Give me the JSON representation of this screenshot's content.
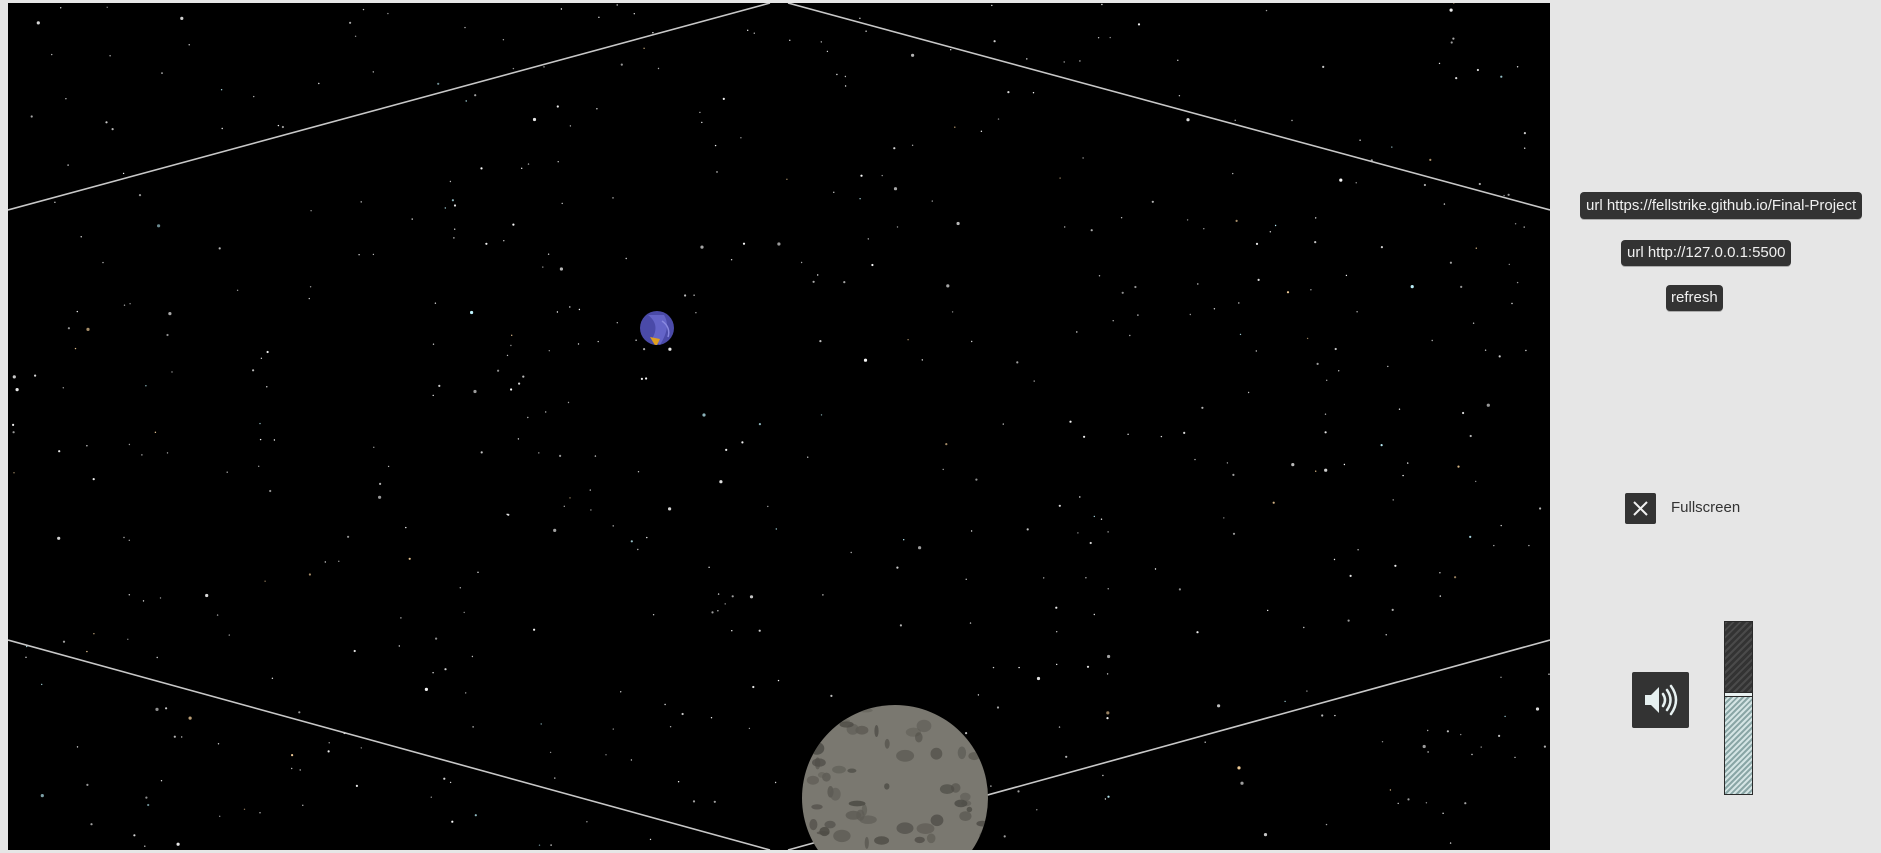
{
  "toolbar": {
    "url_prod_label": "url https://fellstrike.github.io/Final-Project",
    "url_local_label": "url http://127.0.0.1:5500",
    "refresh_label": "refresh"
  },
  "fullscreen": {
    "label": "Fullscreen",
    "checked": true,
    "icon": "close-icon"
  },
  "audio": {
    "speaker_icon": "speaker-icon",
    "volume_fraction": 0.58
  },
  "scene": {
    "background_color": "#000000",
    "frame_line_color": "#c8c8c8",
    "planet_colors": [
      "#4a4aa8",
      "#e0a020"
    ],
    "moon_color": "#7a7870"
  },
  "colors": {
    "panel_bg": "#e6e6e6",
    "button_bg": "#333333",
    "button_text": "#f0f0f0"
  }
}
